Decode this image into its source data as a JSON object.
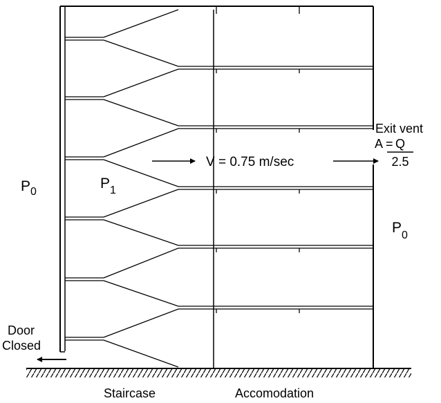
{
  "labels": {
    "pressure_outside_left": {
      "symbol": "P",
      "subscript": "0"
    },
    "pressure_staircase": {
      "symbol": "P",
      "subscript": "1"
    },
    "pressure_outside_right": {
      "symbol": "P",
      "subscript": "0"
    },
    "velocity": "V = 0.75 m/sec",
    "exit_vent_title": "Exit vent",
    "exit_vent_area_prefix": "A =",
    "exit_vent_numerator": "Q",
    "exit_vent_denominator": "2.5",
    "door_line1": "Door",
    "door_line2": "Closed",
    "staircase": "Staircase",
    "accommodation": "Accomodation"
  },
  "colors": {
    "line": "#000000",
    "background": "#ffffff"
  }
}
